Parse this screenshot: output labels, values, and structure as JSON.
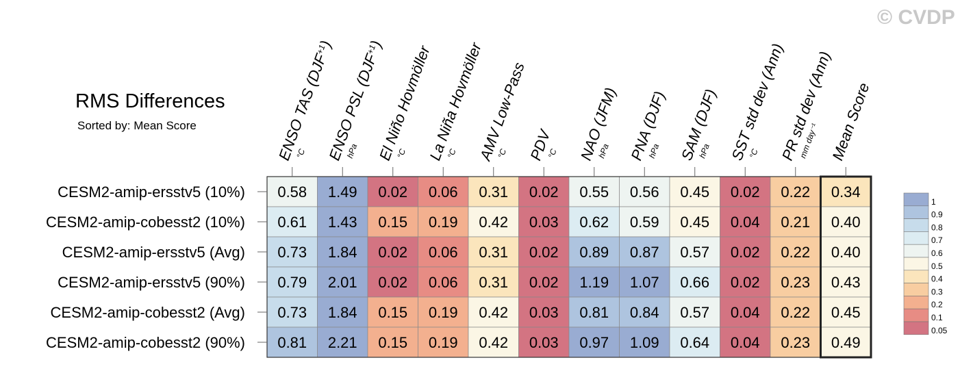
{
  "watermark": "© CVDP",
  "chart_data": {
    "type": "heatmap",
    "title": "RMS Differences",
    "subtitle": "Sorted by: Mean Score",
    "columns": [
      {
        "label": "ENSO TAS (DJF",
        "sup": "+1",
        "close": ")",
        "unit": "°C"
      },
      {
        "label": "ENSO PSL (DJF",
        "sup": "+1",
        "close": ")",
        "unit": "hPa"
      },
      {
        "label": "El Niño Hovmöller",
        "sup": "",
        "close": "",
        "unit": "°C"
      },
      {
        "label": "La Niña Hovmöller",
        "sup": "",
        "close": "",
        "unit": "°C"
      },
      {
        "label": "AMV Low-Pass",
        "sup": "",
        "close": "",
        "unit": "°C"
      },
      {
        "label": "PDV",
        "sup": "",
        "close": "",
        "unit": "°C"
      },
      {
        "label": "NAO (JFM)",
        "sup": "",
        "close": "",
        "unit": "hPa"
      },
      {
        "label": "PNA (DJF)",
        "sup": "",
        "close": "",
        "unit": "hPa"
      },
      {
        "label": "SAM (DJF)",
        "sup": "",
        "close": "",
        "unit": "hPa"
      },
      {
        "label": "SST std dev (Ann)",
        "sup": "",
        "close": "",
        "unit": "°C"
      },
      {
        "label": "PR std dev (Ann)",
        "sup": "",
        "close": "",
        "unit": "mm day⁻¹"
      },
      {
        "label": "Mean Score",
        "sup": "",
        "close": "",
        "unit": ""
      }
    ],
    "rows": [
      "CESM2-amip-ersstv5 (10%)",
      "CESM2-amip-cobesst2 (10%)",
      "CESM2-amip-ersstv5 (Avg)",
      "CESM2-amip-ersstv5 (90%)",
      "CESM2-amip-cobesst2 (Avg)",
      "CESM2-amip-cobesst2 (90%)"
    ],
    "values": [
      [
        "0.58",
        "1.49",
        "0.02",
        "0.06",
        "0.31",
        "0.02",
        "0.55",
        "0.56",
        "0.45",
        "0.02",
        "0.22",
        "0.34"
      ],
      [
        "0.61",
        "1.43",
        "0.15",
        "0.19",
        "0.42",
        "0.03",
        "0.62",
        "0.59",
        "0.45",
        "0.04",
        "0.21",
        "0.40"
      ],
      [
        "0.73",
        "1.84",
        "0.02",
        "0.06",
        "0.31",
        "0.02",
        "0.89",
        "0.87",
        "0.57",
        "0.02",
        "0.22",
        "0.40"
      ],
      [
        "0.79",
        "2.01",
        "0.02",
        "0.06",
        "0.31",
        "0.02",
        "1.19",
        "1.07",
        "0.66",
        "0.02",
        "0.23",
        "0.43"
      ],
      [
        "0.73",
        "1.84",
        "0.15",
        "0.19",
        "0.42",
        "0.03",
        "0.81",
        "0.84",
        "0.57",
        "0.04",
        "0.22",
        "0.45"
      ],
      [
        "0.81",
        "2.21",
        "0.15",
        "0.19",
        "0.42",
        "0.03",
        "0.97",
        "1.09",
        "0.64",
        "0.04",
        "0.23",
        "0.49"
      ]
    ],
    "colorbar": {
      "levels": [
        "1",
        "0.9",
        "0.8",
        "0.7",
        "0.6",
        "0.5",
        "0.4",
        "0.3",
        "0.2",
        "0.1",
        "0.05"
      ],
      "colors": [
        "#99acd2",
        "#aec4df",
        "#c7dceb",
        "#dcecf2",
        "#eef4f1",
        "#fbf6e5",
        "#fbe5bc",
        "#f8cda1",
        "#f3b08f",
        "#e78c84",
        "#d37482"
      ],
      "thresholds": [
        1.0,
        0.9,
        0.8,
        0.7,
        0.6,
        0.5,
        0.4,
        0.3,
        0.2,
        0.1,
        0.05
      ]
    },
    "highlight_column": "Mean Score"
  }
}
